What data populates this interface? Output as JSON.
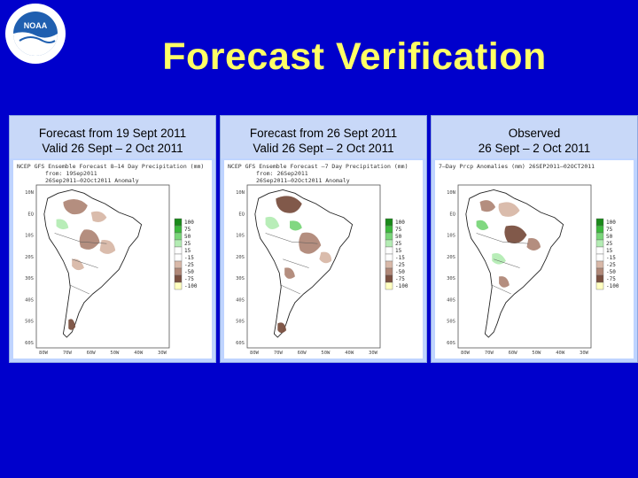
{
  "header": {
    "title": "Forecast Verification",
    "logo_text": "NOAA"
  },
  "panels": [
    {
      "caption_line1": "Forecast from 19 Sept 2011",
      "caption_line2": "Valid 26 Sept – 2 Oct 2011",
      "map_header_1": "NCEP GFS Ensemble Forecast 8–14 Day Precipitation (mm)",
      "map_header_2": "from: 19Sep2011",
      "map_header_3": "26Sep2011–02Oct2011 Anomaly"
    },
    {
      "caption_line1": "Forecast from 26 Sept 2011",
      "caption_line2": "Valid 26 Sept – 2 Oct 2011",
      "map_header_1": "NCEP GFS Ensemble Forecast –7 Day Precipitation (mm)",
      "map_header_2": "from: 26Sep2011",
      "map_header_3": "26Sep2011–02Oct2011 Anomaly"
    },
    {
      "caption_line1": "Observed",
      "caption_line2": "26 Sept – 2 Oct 2011",
      "map_header_1": "7–Day Prcp Anomalies (mm) 26SEP2011–02OCT2011",
      "map_header_2": "",
      "map_header_3": ""
    }
  ],
  "map": {
    "lat_ticks": [
      "10N",
      "EQ",
      "10S",
      "20S",
      "30S",
      "40S",
      "50S",
      "60S"
    ],
    "lon_ticks": [
      "80W",
      "70W",
      "60W",
      "50W",
      "40W",
      "30W"
    ],
    "legend": [
      "100",
      "75",
      "50",
      "25",
      "15",
      "-15",
      "-25",
      "-50",
      "-75",
      "-100"
    ],
    "legend_colors": [
      "#1a8a1a",
      "#3cb83c",
      "#7ad67a",
      "#b4ecb4",
      "#ffffff",
      "#ffffff",
      "#d8b8a8",
      "#b08878",
      "#7a5040",
      "#ffffc0"
    ]
  }
}
